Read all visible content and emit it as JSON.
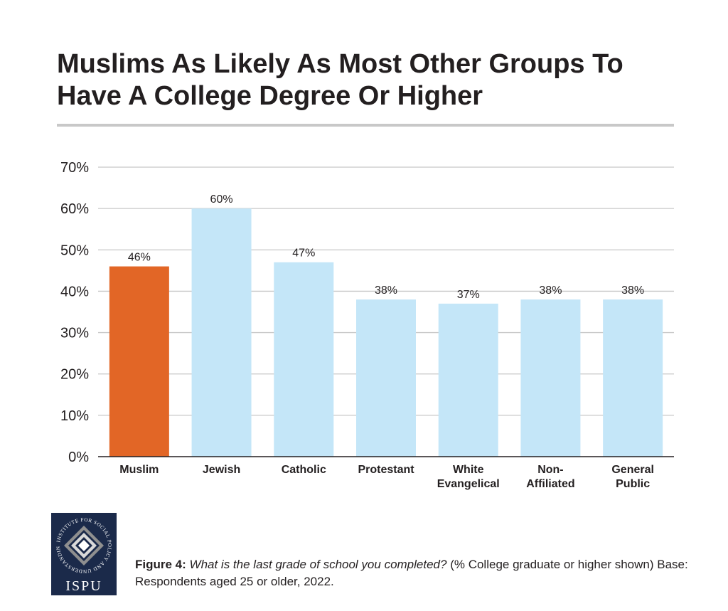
{
  "title": "Muslims As Likely As Most Other Groups To Have A College Degree Or Higher",
  "chart_data": {
    "type": "bar",
    "categories": [
      [
        "Muslim"
      ],
      [
        "Jewish"
      ],
      [
        "Catholic"
      ],
      [
        "Protestant"
      ],
      [
        "White",
        "Evangelical"
      ],
      [
        "Non-",
        "Affiliated"
      ],
      [
        "General",
        "Public"
      ]
    ],
    "values": [
      46,
      60,
      47,
      38,
      37,
      38,
      38
    ],
    "data_labels": [
      "46%",
      "60%",
      "47%",
      "38%",
      "37%",
      "38%",
      "38%"
    ],
    "ylim": [
      0,
      70
    ],
    "yticks": [
      0,
      10,
      20,
      30,
      40,
      50,
      60,
      70
    ],
    "ytick_labels": [
      "0%",
      "10%",
      "20%",
      "30%",
      "40%",
      "50%",
      "60%",
      "70%"
    ],
    "grid": true,
    "colors": {
      "highlight": "#e26626",
      "default": "#c4e6f8",
      "grid": "#c8c8c8",
      "axis": "#231f20"
    },
    "highlight_index": 0
  },
  "logo": {
    "wordmark": "ISPU",
    "ring_text": "INSTITUTE FOR SOCIAL POLICY AND UNDERSTANDING"
  },
  "caption": {
    "figure_label": "Figure 4:",
    "question": "What is the last grade of school you completed?",
    "note": "(% College graduate or higher shown) Base: Respondents aged 25 or older, 2022."
  }
}
